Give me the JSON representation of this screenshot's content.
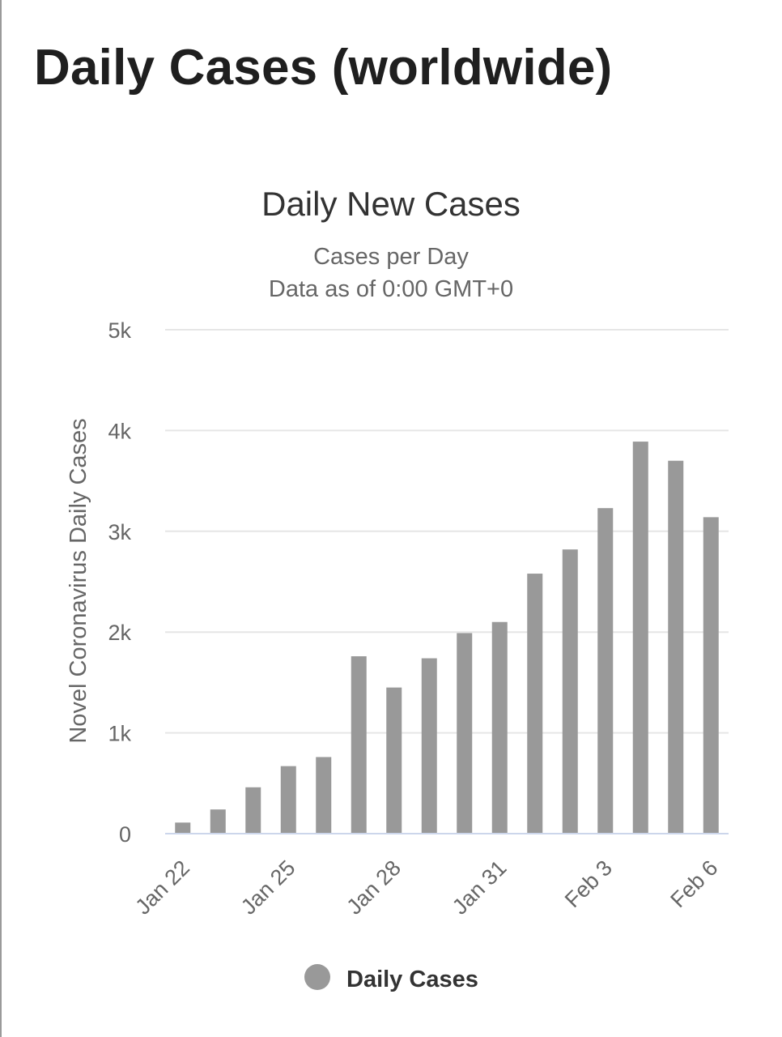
{
  "page": {
    "heading": "Daily Cases (worldwide)"
  },
  "chart_data": {
    "type": "bar",
    "title": "Daily New Cases",
    "subtitle_lines": [
      "Cases per Day",
      "Data as of 0:00 GMT+0"
    ],
    "xlabel": "",
    "ylabel": "Novel Coronavirus Daily Cases",
    "ylim": [
      0,
      5000
    ],
    "y_ticks": [
      0,
      1000,
      2000,
      3000,
      4000,
      5000
    ],
    "y_tick_labels": [
      "0",
      "1k",
      "2k",
      "3k",
      "4k",
      "5k"
    ],
    "categories": [
      "Jan 22",
      "Jan 23",
      "Jan 24",
      "Jan 25",
      "Jan 26",
      "Jan 27",
      "Jan 28",
      "Jan 29",
      "Jan 30",
      "Jan 31",
      "Feb 1",
      "Feb 2",
      "Feb 3",
      "Feb 4",
      "Feb 5",
      "Feb 6"
    ],
    "x_tick_labels": [
      "Jan 22",
      "Jan 25",
      "Jan 28",
      "Jan 31",
      "Feb 3",
      "Feb 6"
    ],
    "series": [
      {
        "name": "Daily Cases",
        "color": "#999999",
        "values": [
          110,
          240,
          460,
          670,
          760,
          1760,
          1450,
          1740,
          1990,
          2100,
          2580,
          2820,
          3230,
          3890,
          3700,
          3140
        ]
      }
    ],
    "grid": true,
    "legend_position": "bottom-center"
  }
}
